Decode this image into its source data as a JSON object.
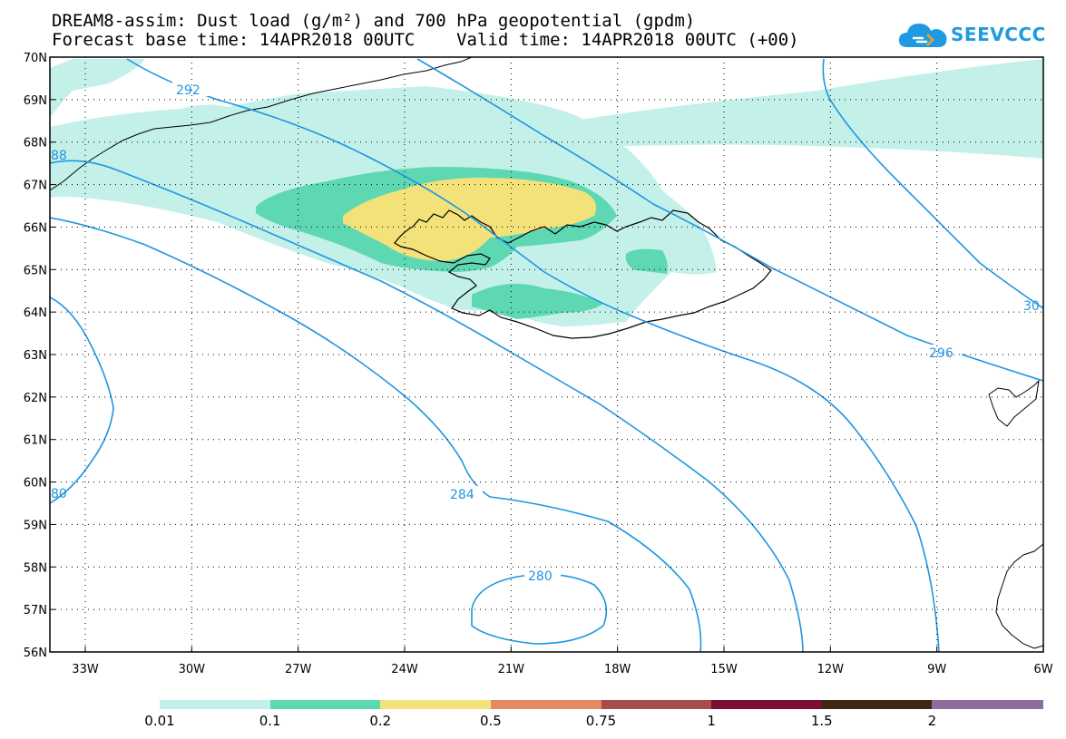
{
  "title_line1": "DREAM8-assim: Dust load (g/m²) and 700 hPa geopotential (gpdm)",
  "title_line2": "Forecast base time: 14APR2018 00UTC    Valid time: 14APR2018 00UTC (+00)",
  "logo": {
    "text": "SEEVCCC",
    "icon": "cloud-logo-icon",
    "color": "#1e9be0"
  },
  "lat_labels": [
    "70N",
    "69N",
    "68N",
    "67N",
    "66N",
    "65N",
    "64N",
    "63N",
    "62N",
    "61N",
    "60N",
    "59N",
    "58N",
    "57N",
    "56N"
  ],
  "lon_labels": [
    "33W",
    "30W",
    "27W",
    "24W",
    "21W",
    "18W",
    "15W",
    "12W",
    "9W",
    "6W"
  ],
  "contour_labels": {
    "c280": "280",
    "c284": "284",
    "c292": "292",
    "c296": "296",
    "c288": "88",
    "c280w": "80",
    "c300": "30"
  },
  "colors": {
    "contour": "#1e96e0",
    "dust_0_01": "#c4f0ea",
    "dust_0_1": "#5ed8b2",
    "dust_0_2": "#f3e27a"
  },
  "legend": {
    "colors": [
      "#c4f0ea",
      "#5ed8b2",
      "#f3e27a",
      "#e38a62",
      "#a64d4c",
      "#7c0f2e",
      "#3f2714",
      "#8e6c9c"
    ],
    "values": [
      "0.01",
      "0.1",
      "0.2",
      "0.5",
      "0.75",
      "1",
      "1.5",
      "2"
    ]
  }
}
